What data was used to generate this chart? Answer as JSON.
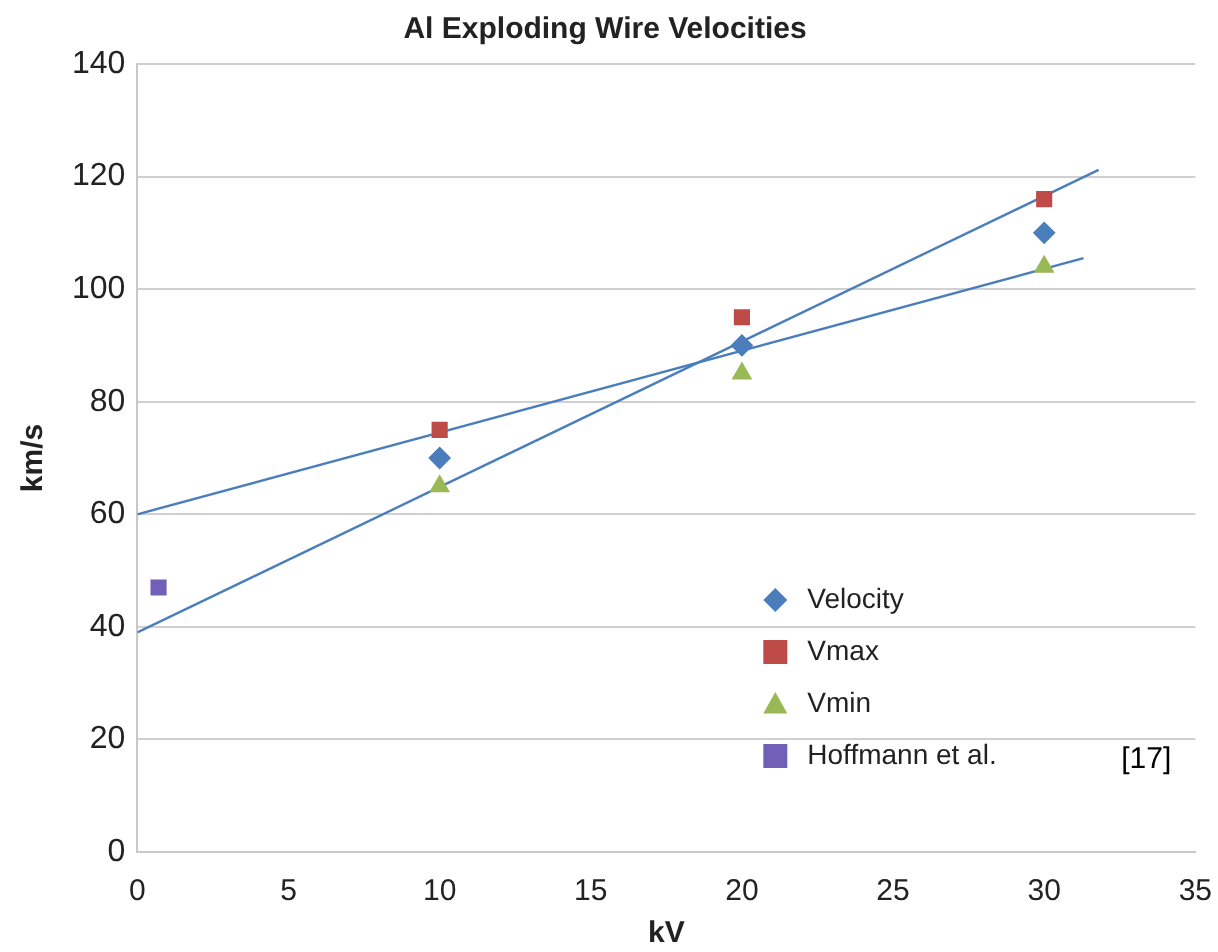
{
  "chart_data": {
    "type": "scatter",
    "title": "Al Exploding Wire Velocities",
    "xlabel": "kV",
    "ylabel": "km/s",
    "xlim": [
      0,
      35
    ],
    "xticks": [
      0,
      5,
      10,
      15,
      20,
      25,
      30,
      35
    ],
    "ylim": [
      0,
      140
    ],
    "yticks": [
      0,
      20,
      40,
      60,
      80,
      100,
      120,
      140
    ],
    "grid": "y",
    "legend": "bottom right",
    "annotations": [
      "[17]"
    ],
    "series": [
      {
        "name": "Velocity",
        "color": "#4a7ebb",
        "marker": "diamond",
        "x": [
          10,
          20,
          30
        ],
        "values": [
          70,
          90,
          110
        ]
      },
      {
        "name": "Vmax",
        "color": "#be4b48",
        "marker": "square",
        "x": [
          10,
          20,
          30
        ],
        "values": [
          75,
          95,
          116
        ]
      },
      {
        "name": "Vmin",
        "color": "#98b954",
        "marker": "triangle",
        "x": [
          10,
          20,
          30
        ],
        "values": [
          65,
          85,
          104
        ]
      },
      {
        "name": "Hoffmann et al.",
        "color": "#7060b8",
        "marker": "square",
        "x": [
          0.7
        ],
        "values": [
          47
        ]
      },
      {
        "type": "line",
        "color": "#4a7ebb",
        "marker": "none",
        "x": [
          0,
          31.3
        ],
        "values": [
          60,
          105.5
        ]
      },
      {
        "type": "line",
        "color": "#4a7ebb",
        "marker": "none",
        "x": [
          0,
          31.8
        ],
        "values": [
          39,
          121.2
        ]
      }
    ]
  }
}
